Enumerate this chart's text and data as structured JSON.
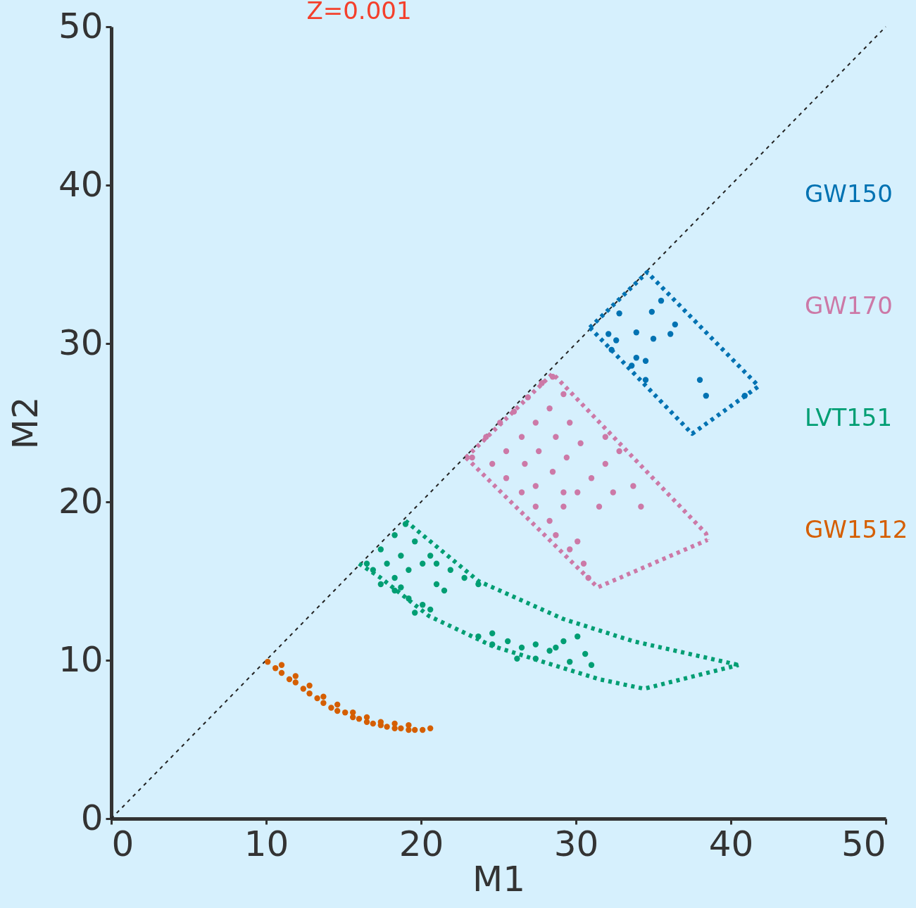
{
  "chart_data": {
    "type": "scatter",
    "title": "Z=0.001",
    "xlabel": "M1",
    "ylabel": "M2",
    "xlim": [
      0,
      50
    ],
    "ylim": [
      0,
      50
    ],
    "xticks": [
      0,
      10,
      20,
      30,
      40,
      50
    ],
    "yticks": [
      0,
      10,
      20,
      30,
      40,
      50
    ],
    "grid": false,
    "legend": "right",
    "series": [
      {
        "type": "line",
        "marker": "none",
        "color": "#222222",
        "line_style": "dotted",
        "x": [
          0,
          50
        ],
        "values": [
          0,
          50
        ]
      },
      {
        "name": "GW150",
        "marker": "circle",
        "color": "#0072b2",
        "x": [
          32.8,
          34.9,
          35.5,
          36.4,
          36.1,
          33.9,
          35.0,
          32.1,
          32.6,
          32.3,
          33.9,
          34.5,
          33.6,
          34.5,
          38.0,
          38.4,
          40.9
        ],
        "values": [
          31.9,
          32.0,
          32.7,
          31.2,
          30.6,
          30.7,
          30.3,
          30.6,
          30.2,
          29.6,
          29.1,
          28.9,
          28.6,
          27.7,
          27.7,
          26.7,
          26.7
        ]
      },
      {
        "type": "line",
        "marker": "none",
        "color": "#0072b2",
        "line_style": "dotted",
        "x": [
          30.9,
          34.6,
          41.8
        ],
        "values": [
          31.0,
          34.5,
          27.3
        ]
      },
      {
        "type": "line",
        "marker": "none",
        "color": "#0072b2",
        "line_style": "dotted",
        "x": [
          30.9,
          37.5,
          41.8
        ],
        "values": [
          31.0,
          24.3,
          27.3
        ]
      },
      {
        "name": "GW170",
        "marker": "circle",
        "color": "#cc79a7",
        "x": [
          23.3,
          24.2,
          25.1,
          26.0,
          26.9,
          27.8,
          28.5,
          24.6,
          25.5,
          26.5,
          27.4,
          28.3,
          29.2,
          25.5,
          26.7,
          27.6,
          28.7,
          29.6,
          26.5,
          27.4,
          28.5,
          29.4,
          30.3,
          27.4,
          28.3,
          29.2,
          30.1,
          31.0,
          31.9,
          32.8,
          28.7,
          29.6,
          30.5,
          30.8,
          30.1,
          31.5,
          32.4,
          33.7,
          34.2,
          31.9,
          29.2
        ],
        "values": [
          22.8,
          24.1,
          25.0,
          25.7,
          26.6,
          27.5,
          27.9,
          22.4,
          23.2,
          24.1,
          25.0,
          25.9,
          26.8,
          21.5,
          22.4,
          23.2,
          24.1,
          25.0,
          20.6,
          21.0,
          21.9,
          22.8,
          23.7,
          19.7,
          18.8,
          19.7,
          20.6,
          21.5,
          22.4,
          23.2,
          17.9,
          17.0,
          16.1,
          15.2,
          17.5,
          19.7,
          20.6,
          21.0,
          19.7,
          24.1,
          20.6
        ]
      },
      {
        "type": "line",
        "marker": "none",
        "color": "#cc79a7",
        "line_style": "dotted",
        "x": [
          22.9,
          28.5,
          38.4,
          38.5
        ],
        "values": [
          22.8,
          28.1,
          18.0,
          17.6
        ]
      },
      {
        "type": "line",
        "marker": "none",
        "color": "#cc79a7",
        "line_style": "dotted",
        "x": [
          22.9,
          31.4,
          38.5
        ],
        "values": [
          22.8,
          14.6,
          17.6
        ]
      },
      {
        "name": "LVT151",
        "marker": "circle",
        "color": "#009e73",
        "x": [
          16.5,
          17.4,
          18.3,
          19.0,
          16.9,
          17.8,
          18.7,
          19.6,
          20.6,
          17.4,
          18.3,
          19.2,
          20.1,
          21.0,
          21.9,
          22.8,
          23.7,
          18.3,
          19.2,
          20.1,
          21.0,
          21.5,
          19.6,
          20.6,
          18.7,
          23.7,
          24.6,
          25.6,
          26.5,
          27.4,
          28.3,
          29.2,
          30.1,
          30.6,
          29.6,
          27.4,
          26.2,
          31.0,
          24.6,
          28.7
        ],
        "values": [
          16.1,
          17.0,
          17.9,
          18.6,
          15.7,
          16.1,
          16.6,
          17.5,
          16.6,
          14.8,
          15.2,
          15.7,
          16.1,
          16.1,
          15.7,
          15.2,
          14.8,
          14.4,
          13.9,
          13.5,
          14.8,
          14.4,
          13.0,
          13.2,
          14.6,
          11.5,
          11.0,
          11.2,
          10.8,
          11.0,
          10.6,
          11.2,
          11.5,
          10.4,
          9.9,
          10.1,
          10.1,
          9.7,
          11.7,
          10.8
        ]
      },
      {
        "type": "line",
        "marker": "none",
        "color": "#009e73",
        "line_style": "dotted",
        "x": [
          19.0,
          23.7,
          29.2,
          33.7,
          40.5
        ],
        "values": [
          18.8,
          15.0,
          12.6,
          11.2,
          9.7
        ]
      },
      {
        "type": "line",
        "marker": "none",
        "color": "#009e73",
        "line_style": "dotted",
        "x": [
          16.0,
          17.4,
          20.5,
          24.6,
          31.5,
          34.4,
          40.5
        ],
        "values": [
          16.1,
          15.2,
          12.8,
          10.9,
          8.8,
          8.2,
          9.7
        ]
      },
      {
        "name": "GW1512",
        "marker": "circle",
        "color": "#d55e00",
        "x": [
          10.1,
          10.6,
          11.0,
          11.5,
          11.9,
          12.4,
          12.8,
          13.3,
          13.7,
          14.2,
          14.6,
          15.1,
          15.6,
          16.0,
          16.5,
          16.9,
          17.4,
          17.8,
          18.3,
          18.7,
          19.2,
          19.6,
          20.1,
          20.6,
          11.0,
          11.9,
          12.8,
          13.7,
          14.6,
          15.6,
          16.5,
          17.4,
          18.3,
          19.2
        ],
        "values": [
          9.9,
          9.5,
          9.2,
          8.8,
          8.6,
          8.2,
          7.9,
          7.6,
          7.3,
          7.0,
          6.8,
          6.7,
          6.4,
          6.3,
          6.1,
          6.0,
          5.9,
          5.8,
          5.7,
          5.7,
          5.6,
          5.6,
          5.6,
          5.7,
          9.7,
          9.0,
          8.4,
          7.7,
          7.2,
          6.7,
          6.4,
          6.1,
          6.0,
          5.9
        ]
      }
    ]
  }
}
